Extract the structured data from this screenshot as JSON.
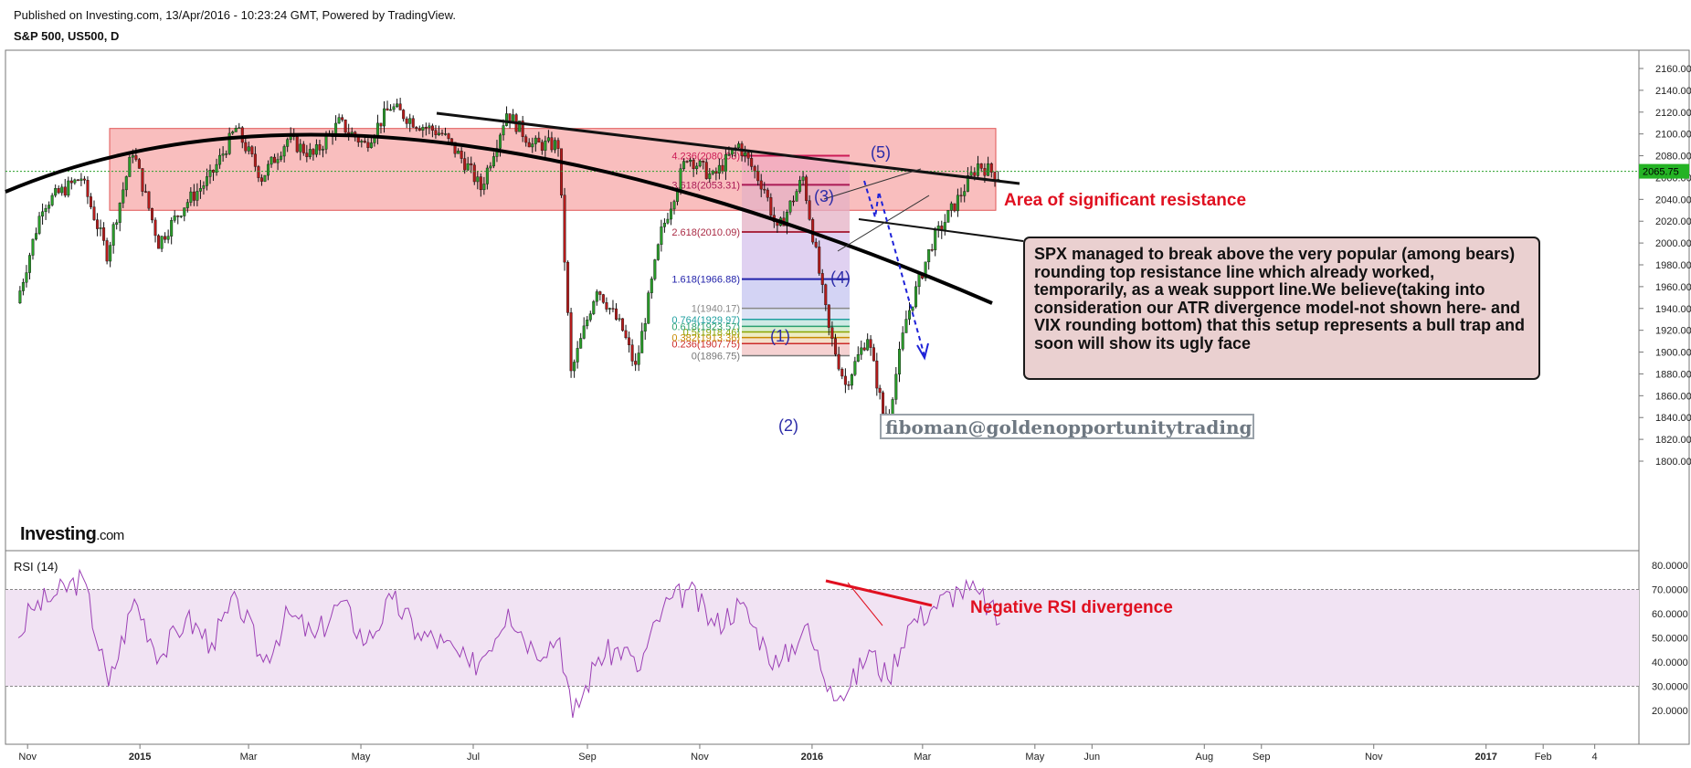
{
  "header": {
    "published": "Published on Investing.com, 13/Apr/2016 - 10:23:24 GMT, Powered by TradingView.",
    "symbol": "S&P 500, US500, D"
  },
  "logo": {
    "strong": "Investing",
    "suffix": ".com"
  },
  "colors": {
    "up": "#2a9d2a",
    "down": "#b31b1b",
    "accent_red": "#e01020",
    "rsi_line": "#9b3fb5",
    "resistance_fill": "#f6a3a3",
    "price_badge": "#24b324"
  },
  "annotations": {
    "resistance_label": "Area of significant resistance",
    "rsi_divergence_label": "Negative RSI divergence",
    "watermark": "fiboman@goldenopportunitytrading",
    "callout": "SPX managed to break above the very popular (among bears) rounding top resistance line which already worked, temporarily, as a weak support line.We believe(taking into consideration our ATR divergence model-not shown here- and VIX rounding bottom) that this setup represents a bull trap and soon will show its ugly face",
    "waves": [
      "(1)",
      "(2)",
      "(3)",
      "(4)",
      "(5)"
    ]
  },
  "chart_data": [
    {
      "type": "candlestick",
      "title": "S&P 500, US500, D",
      "ylim": [
        1790,
        2170
      ],
      "y_ticks": [
        "2160.00",
        "2140.00",
        "2120.00",
        "2100.00",
        "2080.00",
        "2060.00",
        "2040.00",
        "2020.00",
        "2000.00",
        "1980.00",
        "1960.00",
        "1940.00",
        "1920.00",
        "1900.00",
        "1880.00",
        "1860.00",
        "1840.00",
        "1820.00",
        "1800.00"
      ],
      "x_ticks": [
        "Nov",
        "2015",
        "Mar",
        "May",
        "Jul",
        "Sep",
        "Nov",
        "2016",
        "Mar",
        "May",
        "Jun",
        "Aug",
        "Sep",
        "Nov",
        "2017",
        "Feb",
        "4"
      ],
      "last_price": "2065.75",
      "close_path": [
        [
          "2014-10-27",
          1945
        ],
        [
          "2014-11-10",
          2035
        ],
        [
          "2014-12-01",
          2060
        ],
        [
          "2014-12-15",
          1990
        ],
        [
          "2014-12-29",
          2085
        ],
        [
          "2015-01-12",
          2000
        ],
        [
          "2015-01-26",
          2035
        ],
        [
          "2015-02-09",
          2060
        ],
        [
          "2015-02-23",
          2105
        ],
        [
          "2015-03-09",
          2060
        ],
        [
          "2015-03-23",
          2095
        ],
        [
          "2015-04-06",
          2080
        ],
        [
          "2015-04-20",
          2110
        ],
        [
          "2015-05-04",
          2090
        ],
        [
          "2015-05-18",
          2125
        ],
        [
          "2015-06-01",
          2110
        ],
        [
          "2015-06-15",
          2100
        ],
        [
          "2015-06-29",
          2070
        ],
        [
          "2015-07-06",
          2050
        ],
        [
          "2015-07-20",
          2120
        ],
        [
          "2015-08-03",
          2090
        ],
        [
          "2015-08-17",
          2090
        ],
        [
          "2015-08-24",
          1880
        ],
        [
          "2015-09-07",
          1960
        ],
        [
          "2015-09-21",
          1920
        ],
        [
          "2015-09-28",
          1885
        ],
        [
          "2015-10-12",
          2010
        ],
        [
          "2015-10-26",
          2080
        ],
        [
          "2015-11-09",
          2060
        ],
        [
          "2015-11-23",
          2090
        ],
        [
          "2015-12-07",
          2050
        ],
        [
          "2015-12-14",
          2010
        ],
        [
          "2015-12-28",
          2060
        ],
        [
          "2016-01-11",
          1920
        ],
        [
          "2016-01-20",
          1870
        ],
        [
          "2016-02-01",
          1915
        ],
        [
          "2016-02-11",
          1830
        ],
        [
          "2016-02-22",
          1930
        ],
        [
          "2016-03-07",
          2000
        ],
        [
          "2016-03-21",
          2040
        ],
        [
          "2016-04-01",
          2072
        ],
        [
          "2016-04-12",
          2062
        ]
      ],
      "fibonacci": {
        "levels": [
          {
            "label": "0(1896.75)",
            "value": 1896.75
          },
          {
            "label": "0.236(1907.75)",
            "value": 1907.75
          },
          {
            "label": "0.382(1913.36)",
            "value": 1913.36
          },
          {
            "label": "0.5(1918.46)",
            "value": 1918.46
          },
          {
            "label": "0.618(1923.57)",
            "value": 1923.57
          },
          {
            "label": "0.764(1929.97)",
            "value": 1929.97
          },
          {
            "label": "1(1940.17)",
            "value": 1940.17
          },
          {
            "label": "1.618(1966.88)",
            "value": 1966.88
          },
          {
            "label": "2.618(2010.09)",
            "value": 2010.09
          },
          {
            "label": "3.618(2053.31)",
            "value": 2053.31
          },
          {
            "label": "4.236(2080.03)",
            "value": 2080.03
          }
        ]
      },
      "resistance_zone": [
        2030,
        2105
      ]
    },
    {
      "type": "line",
      "title": "RSI (14)",
      "ylim": [
        15,
        80
      ],
      "y_ticks": [
        "80.0000",
        "70.0000",
        "60.0000",
        "50.0000",
        "40.0000",
        "30.0000",
        "20.0000"
      ],
      "band": [
        30,
        70
      ],
      "values": [
        [
          "2014-10-27",
          50
        ],
        [
          "2014-11-03",
          62
        ],
        [
          "2014-11-17",
          68
        ],
        [
          "2014-12-01",
          75
        ],
        [
          "2014-12-15",
          30
        ],
        [
          "2014-12-29",
          66
        ],
        [
          "2015-01-12",
          42
        ],
        [
          "2015-01-26",
          58
        ],
        [
          "2015-02-09",
          48
        ],
        [
          "2015-02-23",
          66
        ],
        [
          "2015-03-09",
          40
        ],
        [
          "2015-03-23",
          60
        ],
        [
          "2015-04-06",
          50
        ],
        [
          "2015-04-20",
          65
        ],
        [
          "2015-05-04",
          48
        ],
        [
          "2015-05-18",
          66
        ],
        [
          "2015-06-01",
          52
        ],
        [
          "2015-06-15",
          48
        ],
        [
          "2015-06-29",
          38
        ],
        [
          "2015-07-06",
          42
        ],
        [
          "2015-07-20",
          62
        ],
        [
          "2015-08-03",
          45
        ],
        [
          "2015-08-17",
          50
        ],
        [
          "2015-08-24",
          17
        ],
        [
          "2015-09-07",
          42
        ],
        [
          "2015-09-21",
          46
        ],
        [
          "2015-09-28",
          36
        ],
        [
          "2015-10-12",
          62
        ],
        [
          "2015-10-26",
          70
        ],
        [
          "2015-11-09",
          55
        ],
        [
          "2015-11-23",
          64
        ],
        [
          "2015-12-07",
          46
        ],
        [
          "2015-12-14",
          38
        ],
        [
          "2015-12-28",
          55
        ],
        [
          "2016-01-11",
          30
        ],
        [
          "2016-01-20",
          27
        ],
        [
          "2016-02-01",
          45
        ],
        [
          "2016-02-11",
          33
        ],
        [
          "2016-02-22",
          55
        ],
        [
          "2016-03-07",
          63
        ],
        [
          "2016-03-21",
          70
        ],
        [
          "2016-04-01",
          68
        ],
        [
          "2016-04-12",
          56
        ]
      ]
    }
  ]
}
